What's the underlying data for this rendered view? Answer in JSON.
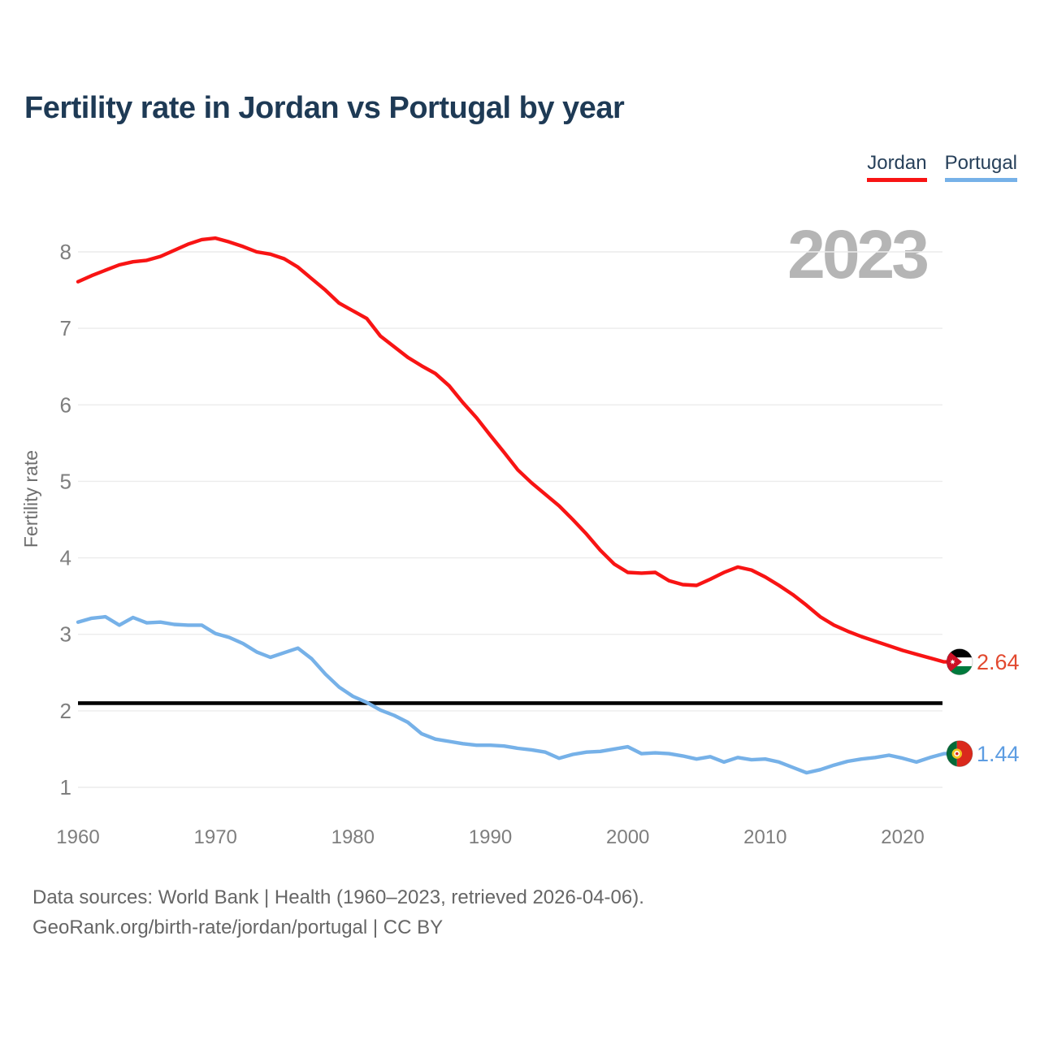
{
  "title": "Fertility rate in Jordan vs Portugal by year",
  "watermark": "2023",
  "y_axis_label": "Fertility rate",
  "legend": {
    "items": [
      {
        "label": "Jordan",
        "color": "#f81414"
      },
      {
        "label": "Portugal",
        "color": "#76b1e8"
      }
    ]
  },
  "end_labels": {
    "jordan": {
      "value": "2.64",
      "color": "#e2492f"
    },
    "portugal": {
      "value": "1.44",
      "color": "#5d9de2"
    }
  },
  "footer": {
    "line1": "Data sources: World Bank | Health (1960–2023, retrieved 2026-04-06).",
    "line2": "GeoRank.org/birth-rate/jordan/portugal | CC BY"
  },
  "chart_data": {
    "type": "line",
    "title": "Fertility rate in Jordan vs Portugal by year",
    "xlabel": "",
    "ylabel": "Fertility rate",
    "grid": true,
    "legend_position": "top-right",
    "watermark": "2023",
    "watermark_color": "#b5b5b5",
    "ylim": [
      0.8,
      8.6
    ],
    "yticks": [
      1,
      2,
      3,
      4,
      5,
      6,
      7,
      8
    ],
    "xticks": [
      1960,
      1970,
      1980,
      1990,
      2000,
      2010,
      2020
    ],
    "reference_line": {
      "value": 2.1,
      "color": "#000000"
    },
    "x": [
      1960,
      1961,
      1962,
      1963,
      1964,
      1965,
      1966,
      1967,
      1968,
      1969,
      1970,
      1971,
      1972,
      1973,
      1974,
      1975,
      1976,
      1977,
      1978,
      1979,
      1980,
      1981,
      1982,
      1983,
      1984,
      1985,
      1986,
      1987,
      1988,
      1989,
      1990,
      1991,
      1992,
      1993,
      1994,
      1995,
      1996,
      1997,
      1998,
      1999,
      2000,
      2001,
      2002,
      2003,
      2004,
      2005,
      2006,
      2007,
      2008,
      2009,
      2010,
      2011,
      2012,
      2013,
      2014,
      2015,
      2016,
      2017,
      2018,
      2019,
      2020,
      2021,
      2022,
      2023
    ],
    "series": [
      {
        "name": "Jordan",
        "color": "#f81414",
        "end_value": 2.64,
        "values": [
          7.61,
          7.69,
          7.76,
          7.83,
          7.87,
          7.89,
          7.94,
          8.02,
          8.1,
          8.16,
          8.18,
          8.13,
          8.07,
          8.0,
          7.97,
          7.91,
          7.8,
          7.65,
          7.5,
          7.33,
          7.23,
          7.13,
          6.9,
          6.76,
          6.62,
          6.51,
          6.41,
          6.25,
          6.03,
          5.83,
          5.6,
          5.38,
          5.15,
          4.98,
          4.83,
          4.68,
          4.5,
          4.31,
          4.1,
          3.92,
          3.81,
          3.8,
          3.81,
          3.7,
          3.65,
          3.64,
          3.72,
          3.81,
          3.88,
          3.84,
          3.75,
          3.64,
          3.52,
          3.38,
          3.23,
          3.12,
          3.04,
          2.97,
          2.91,
          2.85,
          2.79,
          2.74,
          2.69,
          2.64
        ]
      },
      {
        "name": "Portugal",
        "color": "#76b1e8",
        "end_value": 1.44,
        "values": [
          3.16,
          3.21,
          3.23,
          3.12,
          3.22,
          3.15,
          3.16,
          3.13,
          3.12,
          3.12,
          3.01,
          2.96,
          2.88,
          2.77,
          2.7,
          2.76,
          2.82,
          2.68,
          2.48,
          2.31,
          2.19,
          2.11,
          2.01,
          1.94,
          1.85,
          1.7,
          1.63,
          1.6,
          1.57,
          1.55,
          1.55,
          1.54,
          1.51,
          1.49,
          1.46,
          1.38,
          1.43,
          1.46,
          1.47,
          1.5,
          1.53,
          1.44,
          1.45,
          1.44,
          1.41,
          1.37,
          1.4,
          1.33,
          1.39,
          1.36,
          1.37,
          1.33,
          1.26,
          1.19,
          1.23,
          1.29,
          1.34,
          1.37,
          1.39,
          1.42,
          1.38,
          1.33,
          1.39,
          1.44
        ]
      }
    ]
  }
}
